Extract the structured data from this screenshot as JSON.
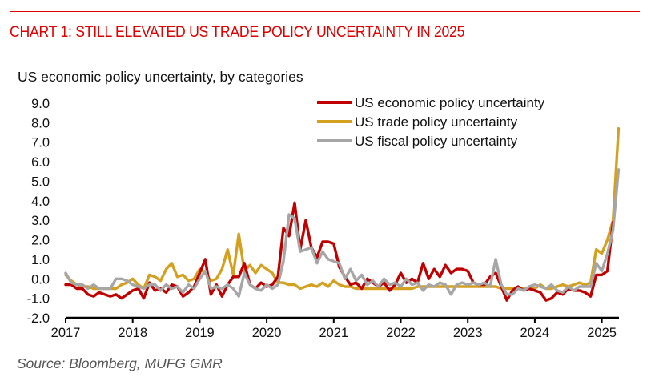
{
  "header": {
    "title": "CHART 1: STILL ELEVATED US TRADE POLICY UNCERTAINTY IN 2025",
    "subtitle": "US economic policy uncertainty, by categories"
  },
  "footer": {
    "source": "Source: Bloomberg, MUFG GMR"
  },
  "colors": {
    "title": "#e00000",
    "economic": "#c00000",
    "trade": "#d4a020",
    "fiscal": "#a6a6a6",
    "axis": "#000000"
  },
  "chart_data": {
    "type": "line",
    "title": "CHART 1: STILL ELEVATED US TRADE POLICY UNCERTAINTY IN 2025",
    "subtitle": "US economic policy uncertainty, by categories",
    "xlabel": "",
    "ylabel": "",
    "ylim": [
      -2.0,
      9.0
    ],
    "yticks": [
      "9.0",
      "8.0",
      "7.0",
      "6.0",
      "5.0",
      "4.0",
      "3.0",
      "2.0",
      "1.0",
      "0.0",
      "-1.0",
      "-2.0"
    ],
    "ytick_values": [
      9,
      8,
      7,
      6,
      5,
      4,
      3,
      2,
      1,
      0,
      -1,
      -2
    ],
    "xticks": [
      "2017",
      "2018",
      "2019",
      "2020",
      "2021",
      "2022",
      "2023",
      "2024",
      "2025"
    ],
    "x_start": "2017-01",
    "x_frequency": "monthly",
    "grid": false,
    "legend_position": "top-right",
    "series": [
      {
        "name": "US economic policy uncertainty",
        "color": "#c00000",
        "values": [
          -0.3,
          -0.3,
          -0.5,
          -0.5,
          -0.8,
          -0.9,
          -0.7,
          -0.8,
          -0.9,
          -0.8,
          -1.0,
          -0.8,
          -0.6,
          -0.5,
          -1.0,
          -0.2,
          -0.6,
          -0.5,
          -0.7,
          -0.3,
          -0.4,
          -0.9,
          -0.7,
          -0.4,
          0.3,
          1.0,
          -0.8,
          -0.3,
          -0.9,
          -0.3,
          0.1,
          0.1,
          0.8,
          -0.3,
          -0.5,
          -0.2,
          -0.4,
          -0.3,
          0.1,
          2.6,
          2.2,
          3.9,
          1.5,
          3.0,
          1.6,
          1.1,
          1.9,
          1.9,
          1.8,
          0.6,
          0.1,
          -0.3,
          -0.2,
          -0.5,
          0.0,
          -0.2,
          -0.4,
          -0.2,
          -0.6,
          -0.3,
          0.3,
          -0.2,
          0.0,
          -0.2,
          0.8,
          0.0,
          0.5,
          0.1,
          0.7,
          0.3,
          0.5,
          0.5,
          0.4,
          -0.2,
          -0.3,
          -0.3,
          0.1,
          0.3,
          -0.4,
          -1.1,
          -0.6,
          -0.4,
          -0.6,
          -0.5,
          -0.6,
          -0.7,
          -1.1,
          -1.0,
          -0.7,
          -0.8,
          -0.5,
          -0.6,
          -0.6,
          -0.7,
          -0.9,
          0.2,
          0.2,
          0.4,
          2.9
        ]
      },
      {
        "name": "US trade policy uncertainty",
        "color": "#d4a020",
        "values": [
          0.2,
          -0.1,
          -0.3,
          -0.4,
          -0.4,
          -0.5,
          -0.5,
          -0.5,
          -0.5,
          -0.5,
          -0.3,
          -0.2,
          0.0,
          -0.3,
          -0.5,
          0.2,
          0.1,
          -0.1,
          0.5,
          0.8,
          0.1,
          0.2,
          -0.1,
          0.0,
          0.5,
          0.3,
          -0.1,
          0.0,
          0.5,
          1.5,
          0.2,
          2.3,
          0.4,
          0.7,
          0.3,
          0.7,
          0.5,
          0.3,
          -0.2,
          -0.2,
          -0.3,
          -0.3,
          -0.5,
          -0.4,
          -0.3,
          -0.4,
          -0.2,
          -0.4,
          -0.1,
          -0.3,
          -0.4,
          -0.4,
          -0.5,
          -0.5,
          -0.5,
          -0.5,
          -0.5,
          -0.5,
          -0.5,
          -0.5,
          -0.5,
          -0.5,
          -0.5,
          -0.4,
          -0.4,
          -0.4,
          -0.4,
          -0.4,
          -0.4,
          -0.4,
          -0.4,
          -0.4,
          -0.4,
          -0.4,
          -0.4,
          -0.4,
          -0.4,
          -0.4,
          -0.5,
          -0.5,
          -0.5,
          -0.5,
          -0.5,
          -0.5,
          -0.5,
          -0.3,
          -0.5,
          -0.5,
          -0.4,
          -0.3,
          -0.4,
          -0.3,
          -0.2,
          -0.3,
          -0.2,
          1.5,
          1.3,
          2.0,
          3.0,
          7.7
        ]
      },
      {
        "name": "US fiscal policy uncertainty",
        "color": "#a6a6a6",
        "values": [
          0.3,
          -0.2,
          -0.3,
          -0.3,
          -0.5,
          -0.3,
          -0.5,
          -0.5,
          -0.5,
          0.0,
          0.0,
          -0.1,
          -0.3,
          -0.4,
          -0.5,
          -0.3,
          -0.3,
          -0.6,
          -0.3,
          -0.5,
          -0.4,
          -0.7,
          -0.3,
          -0.5,
          0.0,
          0.4,
          -0.5,
          -0.4,
          -0.5,
          -0.3,
          -0.5,
          -0.9,
          0.3,
          -0.3,
          -0.5,
          -0.6,
          -0.3,
          -0.5,
          -0.3,
          0.9,
          3.3,
          3.1,
          1.4,
          1.5,
          1.6,
          0.8,
          1.4,
          1.0,
          0.9,
          0.8,
          0.0,
          0.5,
          -0.1,
          0.2,
          -0.3,
          -0.1,
          -0.4,
          0.0,
          -0.3,
          -0.2,
          -0.4,
          0.0,
          -0.3,
          -0.2,
          -0.6,
          -0.3,
          -0.4,
          -0.2,
          -0.3,
          -0.8,
          -0.3,
          -0.2,
          -0.3,
          -0.2,
          -0.3,
          -0.2,
          -0.4,
          1.0,
          -0.3,
          -0.8,
          -0.8,
          -0.5,
          -0.6,
          -0.4,
          -0.3,
          -0.4,
          -0.5,
          -0.3,
          -0.6,
          -0.7,
          -0.4,
          -0.6,
          -0.4,
          -0.4,
          -0.4,
          0.8,
          0.4,
          1.3,
          2.5,
          5.6
        ]
      }
    ]
  }
}
